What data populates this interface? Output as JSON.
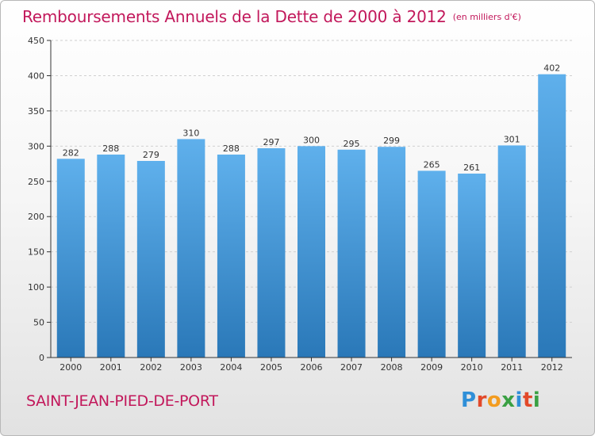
{
  "title": "Remboursements Annuels de la Dette de 2000 à 2012",
  "title_unit": "(en milliers d'€)",
  "commune": "SAINT-JEAN-PIED-DE-PORT",
  "logo": {
    "letters": [
      {
        "char": "P",
        "color": "#2f8fd8"
      },
      {
        "char": "r",
        "color": "#e2492a"
      },
      {
        "char": "o",
        "color": "#f39c1f"
      },
      {
        "char": "x",
        "color": "#3aa043"
      },
      {
        "char": "i",
        "color": "#2f8fd8"
      },
      {
        "char": "t",
        "color": "#e2492a"
      },
      {
        "char": "i",
        "color": "#3aa043"
      }
    ]
  },
  "colors": {
    "title": "#c2185b",
    "bar_top": "#5fb0ec",
    "bar_bottom": "#2a78b8",
    "axis": "#333333",
    "grid": "#d0d0d0"
  },
  "chart_data": {
    "type": "bar",
    "categories": [
      "2000",
      "2001",
      "2002",
      "2003",
      "2004",
      "2005",
      "2006",
      "2007",
      "2008",
      "2009",
      "2010",
      "2011",
      "2012"
    ],
    "values": [
      282,
      288,
      279,
      310,
      288,
      297,
      300,
      295,
      299,
      265,
      261,
      301,
      402
    ],
    "ylim": [
      0,
      450
    ],
    "yticks": [
      0,
      50,
      100,
      150,
      200,
      250,
      300,
      350,
      400,
      450
    ],
    "grid": true,
    "data_labels": true
  }
}
